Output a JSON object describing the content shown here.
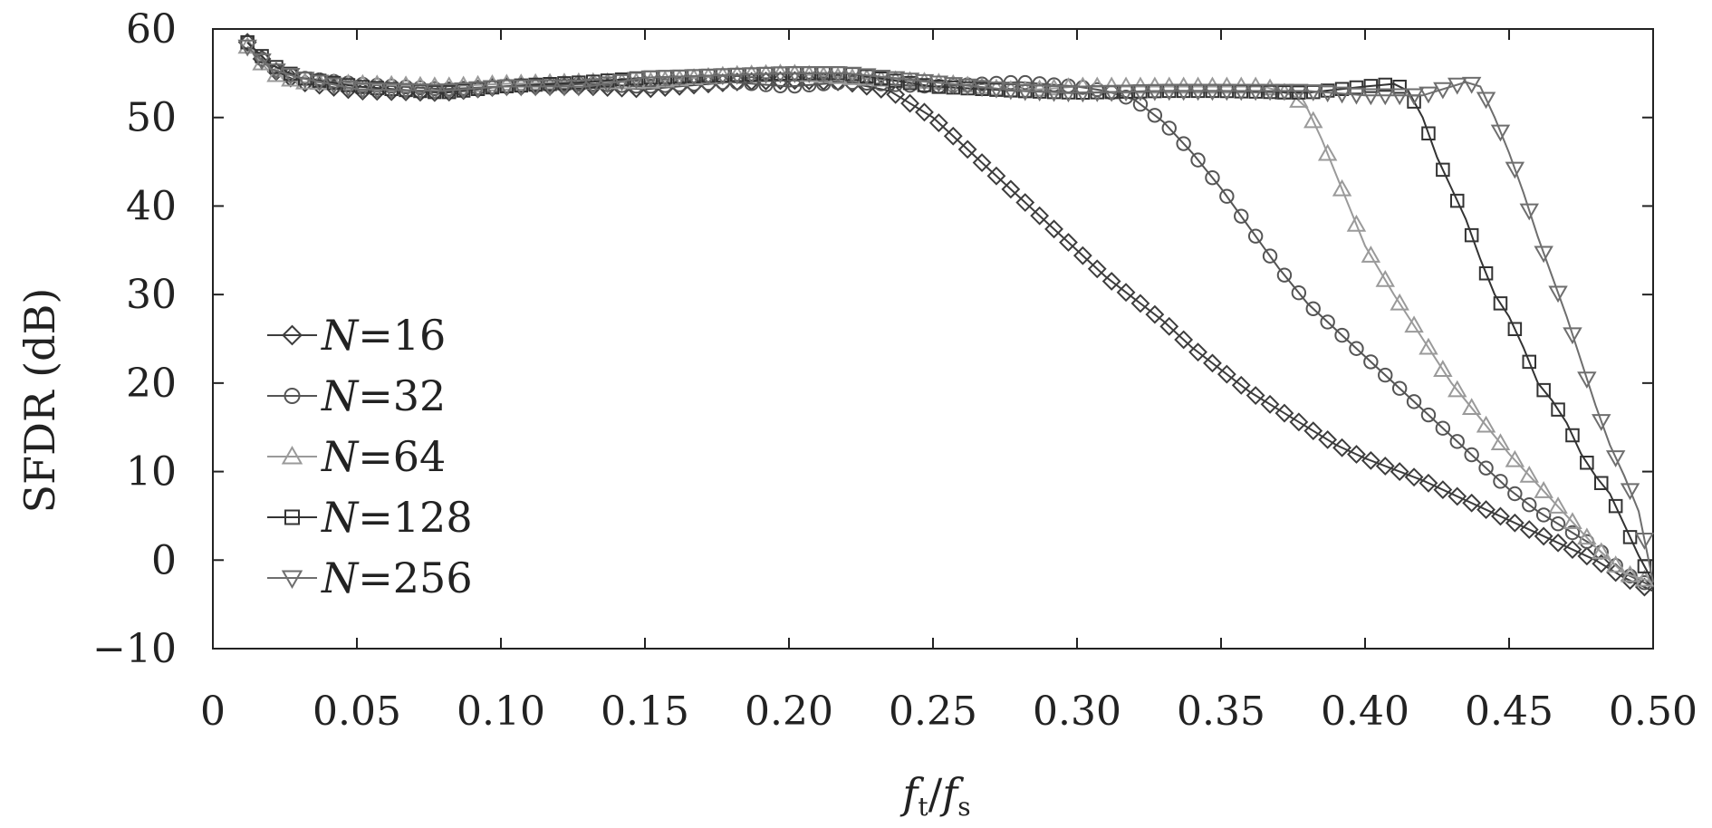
{
  "chart_data": {
    "type": "line",
    "xlabel": {
      "italic": "f",
      "sub1": "t",
      "slash": "/",
      "italic2": "f",
      "sub2": "s"
    },
    "ylabel": "SFDR (dB)",
    "xlim": [
      0,
      0.5
    ],
    "ylim": [
      -10,
      60
    ],
    "x_ticks": [
      0,
      0.05,
      0.1,
      0.15,
      0.2,
      0.25,
      0.3,
      0.35,
      0.4,
      0.45,
      0.5
    ],
    "x_tick_labels": [
      "0",
      "0.05",
      "0.10",
      "0.15",
      "0.20",
      "0.25",
      "0.30",
      "0.35",
      "0.40",
      "0.45",
      "0.50"
    ],
    "y_ticks": [
      -10,
      0,
      10,
      20,
      30,
      40,
      50,
      60
    ],
    "y_tick_labels": [
      "−10",
      "0",
      "10",
      "20",
      "30",
      "40",
      "50",
      "60"
    ],
    "legend_position": "middle-left",
    "grid": false,
    "series": [
      {
        "name_prefix": "N",
        "name_value": "=16",
        "marker": "diamond",
        "color": "#3d3d3d",
        "x": [
          0.012,
          0.02,
          0.03,
          0.05,
          0.08,
          0.1,
          0.13,
          0.15,
          0.18,
          0.2,
          0.22,
          0.235,
          0.25,
          0.26,
          0.27,
          0.28,
          0.29,
          0.3,
          0.31,
          0.32,
          0.33,
          0.34,
          0.35,
          0.36,
          0.37,
          0.38,
          0.39,
          0.4,
          0.42,
          0.44,
          0.46,
          0.48,
          0.49,
          0.5
        ],
        "y": [
          58.5,
          55.5,
          54,
          53,
          52.8,
          53.5,
          53.5,
          53.2,
          54,
          54.2,
          54,
          53,
          50,
          47,
          44,
          41,
          38,
          35,
          32,
          29.5,
          27,
          24,
          21.5,
          19,
          17,
          15,
          13,
          11.5,
          9,
          6,
          3,
          0,
          -2,
          -3.5
        ]
      },
      {
        "name_prefix": "N",
        "name_value": "=32",
        "marker": "circle",
        "color": "#555555",
        "x": [
          0.012,
          0.02,
          0.03,
          0.05,
          0.08,
          0.1,
          0.13,
          0.15,
          0.18,
          0.2,
          0.22,
          0.25,
          0.28,
          0.3,
          0.31,
          0.32,
          0.33,
          0.34,
          0.35,
          0.36,
          0.37,
          0.38,
          0.39,
          0.4,
          0.41,
          0.42,
          0.43,
          0.44,
          0.45,
          0.46,
          0.47,
          0.48,
          0.49,
          0.5
        ],
        "y": [
          58.5,
          55.5,
          54.5,
          53.8,
          53.2,
          53.5,
          53.8,
          53.5,
          54,
          53.5,
          54,
          53.5,
          54,
          53.5,
          53,
          52,
          49.5,
          46,
          42,
          37.5,
          33,
          29,
          26,
          23,
          20,
          17,
          14,
          11,
          8,
          5.5,
          3.5,
          1.5,
          -1.5,
          -3
        ]
      },
      {
        "name_prefix": "N",
        "name_value": "=64",
        "marker": "triangle-up",
        "color": "#9a9a9a",
        "x": [
          0.012,
          0.02,
          0.03,
          0.05,
          0.08,
          0.1,
          0.13,
          0.15,
          0.18,
          0.2,
          0.22,
          0.25,
          0.28,
          0.3,
          0.33,
          0.35,
          0.365,
          0.375,
          0.38,
          0.385,
          0.39,
          0.395,
          0.4,
          0.41,
          0.42,
          0.43,
          0.44,
          0.45,
          0.46,
          0.47,
          0.48,
          0.49,
          0.5
        ],
        "y": [
          58,
          55,
          54,
          53.8,
          53.5,
          53.8,
          54,
          54,
          54.8,
          55,
          54.5,
          54,
          53,
          53.5,
          53.5,
          53.5,
          53.5,
          52.5,
          51,
          47.5,
          43.5,
          39.5,
          35.5,
          30,
          25,
          20,
          16,
          12,
          8.5,
          5,
          1.5,
          -1.5,
          -2.5
        ]
      },
      {
        "name_prefix": "N",
        "name_value": "=128",
        "marker": "square",
        "color": "#333333",
        "x": [
          0.012,
          0.02,
          0.03,
          0.05,
          0.08,
          0.1,
          0.13,
          0.15,
          0.18,
          0.2,
          0.22,
          0.25,
          0.28,
          0.3,
          0.33,
          0.35,
          0.38,
          0.4,
          0.41,
          0.415,
          0.42,
          0.425,
          0.43,
          0.435,
          0.44,
          0.445,
          0.45,
          0.455,
          0.46,
          0.465,
          0.47,
          0.475,
          0.48,
          0.485,
          0.49,
          0.495,
          0.5
        ],
        "y": [
          58.5,
          56,
          54.5,
          53.5,
          52.8,
          53.5,
          54,
          54.5,
          54.8,
          55,
          55,
          53.5,
          53,
          52.8,
          53,
          53,
          52.8,
          53.5,
          53.8,
          53,
          50,
          45.5,
          42,
          38.5,
          34,
          30,
          27.5,
          24,
          20,
          18,
          15.5,
          12,
          9.5,
          7.5,
          4,
          0.5,
          -2.5
        ]
      },
      {
        "name_prefix": "N",
        "name_value": "=256",
        "marker": "triangle-down",
        "color": "#6e6e6e",
        "x": [
          0.012,
          0.02,
          0.03,
          0.05,
          0.08,
          0.1,
          0.13,
          0.15,
          0.18,
          0.2,
          0.22,
          0.25,
          0.28,
          0.3,
          0.33,
          0.35,
          0.38,
          0.4,
          0.42,
          0.43,
          0.435,
          0.44,
          0.445,
          0.45,
          0.455,
          0.46,
          0.465,
          0.47,
          0.475,
          0.48,
          0.485,
          0.49,
          0.495,
          0.5
        ],
        "y": [
          58,
          55.5,
          54.5,
          53.2,
          53,
          53.5,
          53.5,
          54.5,
          54.8,
          55,
          55,
          54,
          53,
          52.8,
          53,
          53,
          53,
          52.5,
          52.5,
          53.5,
          54,
          53.5,
          50,
          46,
          41.5,
          36.5,
          32,
          27.5,
          22.5,
          17.5,
          13,
          9.5,
          5.5,
          -2.5
        ]
      }
    ]
  }
}
